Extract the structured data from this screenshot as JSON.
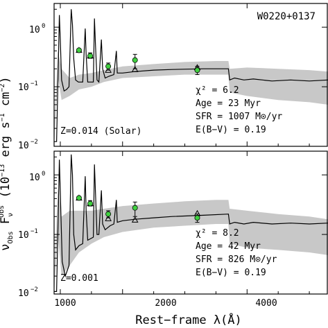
{
  "chart_data": {
    "type": "line",
    "title": "W0220+0137",
    "xlabel": "Rest−frame λ(Å)",
    "ylabel": "ν_Obs F_ν^Obs (10^-13 erg s^-1 cm^-2)",
    "ylabel_parts": {
      "nu": "ν",
      "obs": "Obs",
      "F": " F",
      "nu2": "ν",
      "obs2": "Obs",
      "unit_open": " (10",
      "exp1": "−13",
      "unit_mid": " erg s",
      "exp2": "−1",
      "unit_cm": " cm",
      "exp3": "−2",
      "unit_close": ")"
    },
    "xlim": [
      900,
      5300
    ],
    "x_ticks": [
      1000,
      2000,
      4000
    ],
    "x_tick_labels": [
      "1000",
      "2000",
      "4000"
    ],
    "y_scale": "log",
    "ylim": [
      0.01,
      2.5
    ],
    "y_ticks": [
      0.01,
      0.1,
      1
    ],
    "y_tick_labels": [
      "10",
      "−2",
      "10",
      "−1",
      "10",
      "0"
    ],
    "panels": [
      {
        "metallicity_label": "Z=0.014 (Solar)",
        "stats": [
          "χ² = 6.2",
          "Age = 23 Myr",
          "SFR = 1007 M⊙/yr",
          "E(B−V) = 0.19"
        ],
        "observed": [
          {
            "x": 1300,
            "y": 0.41,
            "err_lo": 0.02,
            "err_hi": 0.02
          },
          {
            "x": 1480,
            "y": 0.33,
            "err_lo": 0.03,
            "err_hi": 0.04
          },
          {
            "x": 1770,
            "y": 0.22,
            "err_lo": 0.03,
            "err_hi": 0.03
          },
          {
            "x": 2200,
            "y": 0.28,
            "err_lo": 0.08,
            "err_hi": 0.07
          },
          {
            "x": 3200,
            "y": 0.19,
            "err_lo": 0.03,
            "err_hi": 0.03
          }
        ],
        "model_photometry": [
          {
            "x": 1300,
            "y": 0.41
          },
          {
            "x": 1480,
            "y": 0.33
          },
          {
            "x": 1770,
            "y": 0.19
          },
          {
            "x": 2200,
            "y": 0.195
          },
          {
            "x": 3200,
            "y": 0.21
          }
        ],
        "model_spectrum": [
          [
            900,
            0.012
          ],
          [
            940,
            0.012
          ],
          [
            970,
            0.3
          ],
          [
            985,
            1.6
          ],
          [
            1000,
            0.6
          ],
          [
            1020,
            0.13
          ],
          [
            1060,
            0.085
          ],
          [
            1100,
            0.09
          ],
          [
            1140,
            0.1
          ],
          [
            1175,
            2.0
          ],
          [
            1195,
            1.1
          ],
          [
            1215,
            0.3
          ],
          [
            1245,
            0.13
          ],
          [
            1290,
            0.12
          ],
          [
            1360,
            0.12
          ],
          [
            1400,
            0.95
          ],
          [
            1415,
            0.35
          ],
          [
            1440,
            0.12
          ],
          [
            1530,
            0.12
          ],
          [
            1548,
            1.4
          ],
          [
            1565,
            0.5
          ],
          [
            1590,
            0.13
          ],
          [
            1620,
            0.12
          ],
          [
            1660,
            0.62
          ],
          [
            1680,
            0.2
          ],
          [
            1720,
            0.14
          ],
          [
            1780,
            0.15
          ],
          [
            1860,
            0.16
          ],
          [
            1900,
            0.4
          ],
          [
            1915,
            0.17
          ],
          [
            2000,
            0.17
          ],
          [
            2200,
            0.18
          ],
          [
            2500,
            0.19
          ],
          [
            2800,
            0.195
          ],
          [
            3300,
            0.2
          ],
          [
            3700,
            0.2
          ],
          [
            3720,
            0.13
          ],
          [
            3800,
            0.14
          ],
          [
            3950,
            0.13
          ],
          [
            4100,
            0.135
          ],
          [
            4400,
            0.125
          ],
          [
            4700,
            0.13
          ],
          [
            5000,
            0.125
          ],
          [
            5300,
            0.13
          ]
        ],
        "uncertainty_band": [
          [
            900,
            0.01,
            0.02
          ],
          [
            960,
            0.15,
            0.4
          ],
          [
            1020,
            0.06,
            0.2
          ],
          [
            1150,
            0.07,
            0.14
          ],
          [
            1300,
            0.09,
            0.16
          ],
          [
            1500,
            0.1,
            0.17
          ],
          [
            1700,
            0.12,
            0.19
          ],
          [
            2000,
            0.14,
            0.22
          ],
          [
            2500,
            0.15,
            0.24
          ],
          [
            3000,
            0.16,
            0.26
          ],
          [
            3500,
            0.16,
            0.27
          ],
          [
            3700,
            0.16,
            0.27
          ],
          [
            3720,
            0.08,
            0.2
          ],
          [
            4000,
            0.07,
            0.21
          ],
          [
            4500,
            0.06,
            0.2
          ],
          [
            5000,
            0.055,
            0.19
          ],
          [
            5300,
            0.05,
            0.18
          ]
        ]
      },
      {
        "metallicity_label": "Z=0.001",
        "stats": [
          "χ² = 8.2",
          "Age = 42 Myr",
          "SFR = 826 M⊙/yr",
          "E(B−V) = 0.19"
        ],
        "observed": [
          {
            "x": 1300,
            "y": 0.41,
            "err_lo": 0.02,
            "err_hi": 0.02
          },
          {
            "x": 1480,
            "y": 0.33,
            "err_lo": 0.03,
            "err_hi": 0.04
          },
          {
            "x": 1770,
            "y": 0.22,
            "err_lo": 0.03,
            "err_hi": 0.03
          },
          {
            "x": 2200,
            "y": 0.28,
            "err_lo": 0.08,
            "err_hi": 0.07
          },
          {
            "x": 3200,
            "y": 0.19,
            "err_lo": 0.03,
            "err_hi": 0.03
          }
        ],
        "model_photometry": [
          {
            "x": 1300,
            "y": 0.41
          },
          {
            "x": 1480,
            "y": 0.33
          },
          {
            "x": 1770,
            "y": 0.185
          },
          {
            "x": 2200,
            "y": 0.175
          },
          {
            "x": 3200,
            "y": 0.225
          }
        ],
        "model_spectrum": [
          [
            900,
            0.011
          ],
          [
            940,
            0.011
          ],
          [
            970,
            0.3
          ],
          [
            985,
            1.8
          ],
          [
            1000,
            0.5
          ],
          [
            1030,
            0.035
          ],
          [
            1080,
            0.02
          ],
          [
            1140,
            0.03
          ],
          [
            1175,
            2.2
          ],
          [
            1195,
            1.0
          ],
          [
            1215,
            0.1
          ],
          [
            1245,
            0.055
          ],
          [
            1300,
            0.065
          ],
          [
            1360,
            0.07
          ],
          [
            1400,
            0.95
          ],
          [
            1415,
            0.25
          ],
          [
            1440,
            0.08
          ],
          [
            1530,
            0.09
          ],
          [
            1548,
            1.5
          ],
          [
            1565,
            0.5
          ],
          [
            1590,
            0.1
          ],
          [
            1620,
            0.1
          ],
          [
            1660,
            0.55
          ],
          [
            1680,
            0.15
          ],
          [
            1720,
            0.12
          ],
          [
            1800,
            0.14
          ],
          [
            1860,
            0.15
          ],
          [
            1900,
            0.38
          ],
          [
            1915,
            0.16
          ],
          [
            2000,
            0.17
          ],
          [
            2200,
            0.18
          ],
          [
            2500,
            0.19
          ],
          [
            2800,
            0.2
          ],
          [
            3300,
            0.21
          ],
          [
            3700,
            0.22
          ],
          [
            3720,
            0.15
          ],
          [
            3800,
            0.16
          ],
          [
            3950,
            0.15
          ],
          [
            4100,
            0.16
          ],
          [
            4400,
            0.15
          ],
          [
            4700,
            0.155
          ],
          [
            5000,
            0.15
          ],
          [
            5300,
            0.155
          ]
        ],
        "uncertainty_band": [
          [
            900,
            0.01,
            0.02
          ],
          [
            960,
            0.1,
            0.6
          ],
          [
            1020,
            0.02,
            0.2
          ],
          [
            1150,
            0.03,
            0.25
          ],
          [
            1300,
            0.05,
            0.25
          ],
          [
            1500,
            0.07,
            0.25
          ],
          [
            1700,
            0.09,
            0.27
          ],
          [
            2000,
            0.11,
            0.3
          ],
          [
            2500,
            0.13,
            0.33
          ],
          [
            3000,
            0.14,
            0.36
          ],
          [
            3500,
            0.15,
            0.38
          ],
          [
            3700,
            0.15,
            0.38
          ],
          [
            3720,
            0.07,
            0.27
          ],
          [
            4000,
            0.06,
            0.25
          ],
          [
            4500,
            0.055,
            0.22
          ],
          [
            5000,
            0.05,
            0.2
          ],
          [
            5300,
            0.045,
            0.18
          ]
        ]
      }
    ]
  },
  "colors": {
    "band": "#c8c8c8",
    "model_line": "#000000",
    "observed_fill": "#40d040",
    "observed_edge": "#000000"
  }
}
